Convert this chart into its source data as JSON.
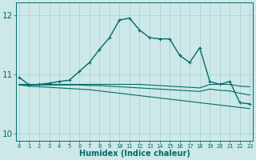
{
  "xlabel": "Humidex (Indice chaleur)",
  "bg_color": "#cde8e8",
  "line_color": "#006b6b",
  "grid_color": "#aacfcf",
  "x_ticks": [
    0,
    1,
    2,
    3,
    4,
    5,
    6,
    7,
    8,
    9,
    10,
    11,
    12,
    13,
    14,
    15,
    16,
    17,
    18,
    19,
    20,
    21,
    22,
    23
  ],
  "ylim": [
    9.88,
    12.22
  ],
  "yticks": [
    10,
    11,
    12
  ],
  "xlim": [
    -0.3,
    23.3
  ],
  "series": [
    {
      "x": [
        0,
        1,
        2,
        3,
        4,
        5,
        6,
        7,
        8,
        9,
        10,
        11,
        12,
        13,
        14,
        15,
        16,
        17,
        18,
        19,
        20,
        21,
        22,
        23
      ],
      "y": [
        10.95,
        10.82,
        10.83,
        10.85,
        10.88,
        10.9,
        11.05,
        11.2,
        11.42,
        11.62,
        11.92,
        11.95,
        11.75,
        11.62,
        11.6,
        11.6,
        11.32,
        11.2,
        11.45,
        10.88,
        10.83,
        10.88,
        10.52,
        10.5
      ],
      "marker": true,
      "lw": 1.0
    },
    {
      "x": [
        0,
        1,
        2,
        3,
        4,
        5,
        6,
        7,
        8,
        9,
        10,
        11,
        12,
        13,
        14,
        15,
        16,
        17,
        18,
        19,
        20,
        21,
        22,
        23
      ],
      "y": [
        10.83,
        10.83,
        10.83,
        10.83,
        10.83,
        10.83,
        10.83,
        10.83,
        10.83,
        10.83,
        10.83,
        10.83,
        10.83,
        10.82,
        10.81,
        10.8,
        10.79,
        10.78,
        10.77,
        10.83,
        10.83,
        10.83,
        10.8,
        10.79
      ],
      "marker": false,
      "lw": 0.8
    },
    {
      "x": [
        0,
        1,
        2,
        3,
        4,
        5,
        6,
        7,
        8,
        9,
        10,
        11,
        12,
        13,
        14,
        15,
        16,
        17,
        18,
        19,
        20,
        21,
        22,
        23
      ],
      "y": [
        10.82,
        10.82,
        10.82,
        10.82,
        10.82,
        10.82,
        10.82,
        10.81,
        10.81,
        10.8,
        10.79,
        10.78,
        10.77,
        10.76,
        10.75,
        10.74,
        10.73,
        10.72,
        10.71,
        10.75,
        10.73,
        10.72,
        10.68,
        10.65
      ],
      "marker": false,
      "lw": 0.8
    },
    {
      "x": [
        0,
        1,
        2,
        3,
        4,
        5,
        6,
        7,
        8,
        9,
        10,
        11,
        12,
        13,
        14,
        15,
        16,
        17,
        18,
        19,
        20,
        21,
        22,
        23
      ],
      "y": [
        10.82,
        10.8,
        10.79,
        10.78,
        10.77,
        10.76,
        10.75,
        10.74,
        10.72,
        10.7,
        10.68,
        10.66,
        10.64,
        10.62,
        10.6,
        10.58,
        10.56,
        10.54,
        10.52,
        10.5,
        10.48,
        10.46,
        10.44,
        10.42
      ],
      "marker": false,
      "lw": 0.8
    }
  ]
}
